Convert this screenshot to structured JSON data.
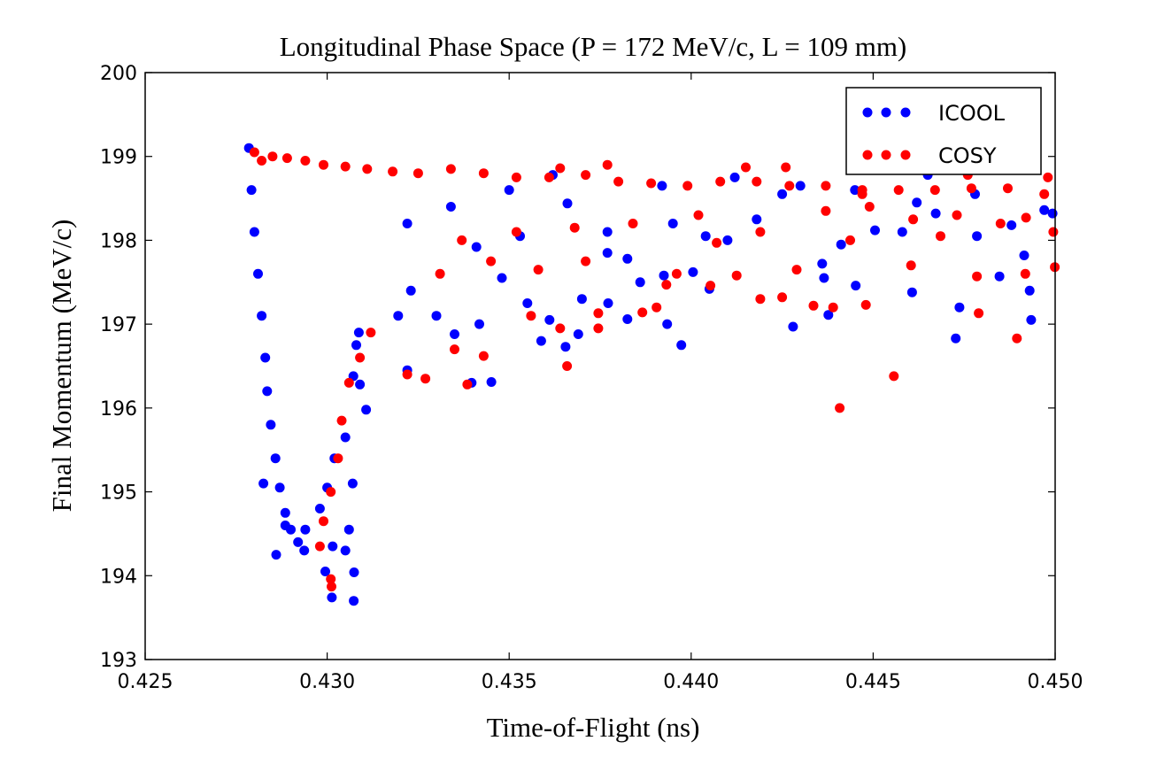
{
  "chart_data": {
    "type": "scatter",
    "title": "Longitudinal Phase Space (P = 172 MeV/c, L = 109 mm)",
    "xlabel": "Time-of-Flight (ns)",
    "ylabel": "Final Momentum (MeV/c)",
    "xlim": [
      0.425,
      0.45
    ],
    "ylim": [
      193,
      200
    ],
    "xticks": [
      "0.425",
      "0.430",
      "0.435",
      "0.440",
      "0.445",
      "0.450"
    ],
    "yticks": [
      "193",
      "194",
      "195",
      "196",
      "197",
      "198",
      "199",
      "200"
    ],
    "grid": false,
    "legend_position": "top-right",
    "series": [
      {
        "name": "ICOOL",
        "color": "#0000ff",
        "points": [
          [
            0.42785,
            199.1
          ],
          [
            0.42792,
            198.6
          ],
          [
            0.428,
            198.1
          ],
          [
            0.4281,
            197.6
          ],
          [
            0.4282,
            197.1
          ],
          [
            0.4283,
            196.6
          ],
          [
            0.42835,
            196.2
          ],
          [
            0.42845,
            195.8
          ],
          [
            0.42858,
            195.4
          ],
          [
            0.4287,
            195.05
          ],
          [
            0.42885,
            194.75
          ],
          [
            0.429,
            194.55
          ],
          [
            0.4292,
            194.4
          ],
          [
            0.42937,
            194.3
          ],
          [
            0.4286,
            194.25
          ],
          [
            0.4294,
            194.55
          ],
          [
            0.4298,
            194.8
          ],
          [
            0.43,
            195.05
          ],
          [
            0.4302,
            195.4
          ],
          [
            0.4305,
            195.65
          ],
          [
            0.4307,
            195.1
          ],
          [
            0.4306,
            194.55
          ],
          [
            0.4305,
            194.3
          ],
          [
            0.42885,
            194.6
          ],
          [
            0.42825,
            195.1
          ],
          [
            0.43015,
            194.35
          ],
          [
            0.42995,
            194.05
          ],
          [
            0.43013,
            193.74
          ],
          [
            0.43073,
            193.7
          ],
          [
            0.43074,
            194.04
          ],
          [
            0.43107,
            195.98
          ],
          [
            0.4309,
            196.28
          ],
          [
            0.43072,
            196.38
          ],
          [
            0.4308,
            196.75
          ],
          [
            0.43087,
            196.9
          ],
          [
            0.4322,
            196.45
          ],
          [
            0.43195,
            197.1
          ],
          [
            0.4323,
            197.4
          ],
          [
            0.433,
            197.1
          ],
          [
            0.4335,
            196.88
          ],
          [
            0.43397,
            196.3
          ],
          [
            0.43451,
            196.31
          ],
          [
            0.43418,
            197.0
          ],
          [
            0.4348,
            197.55
          ],
          [
            0.4355,
            197.25
          ],
          [
            0.43588,
            196.8
          ],
          [
            0.43655,
            196.73
          ],
          [
            0.43611,
            197.05
          ],
          [
            0.4369,
            196.88
          ],
          [
            0.437,
            197.3
          ],
          [
            0.43772,
            197.25
          ],
          [
            0.43825,
            197.06
          ],
          [
            0.43825,
            197.78
          ],
          [
            0.43925,
            197.58
          ],
          [
            0.43934,
            197.0
          ],
          [
            0.43973,
            196.75
          ],
          [
            0.44005,
            197.62
          ],
          [
            0.4405,
            197.42
          ],
          [
            0.441,
            198.0
          ],
          [
            0.4418,
            198.25
          ],
          [
            0.4428,
            196.97
          ],
          [
            0.44365,
            197.55
          ],
          [
            0.4436,
            197.72
          ],
          [
            0.44377,
            197.11
          ],
          [
            0.44412,
            197.95
          ],
          [
            0.44452,
            197.46
          ],
          [
            0.44505,
            198.12
          ],
          [
            0.4458,
            198.1
          ],
          [
            0.44607,
            197.38
          ],
          [
            0.44672,
            198.32
          ],
          [
            0.44727,
            196.83
          ],
          [
            0.44737,
            197.2
          ],
          [
            0.44785,
            198.05
          ],
          [
            0.44847,
            197.57
          ],
          [
            0.44915,
            197.82
          ],
          [
            0.44934,
            197.05
          ],
          [
            0.4493,
            197.4
          ],
          [
            0.4497,
            198.36
          ],
          [
            0.44993,
            198.32
          ],
          [
            0.4377,
            198.1
          ],
          [
            0.4366,
            198.44
          ],
          [
            0.4395,
            198.2
          ],
          [
            0.4425,
            198.55
          ],
          [
            0.4445,
            198.6
          ],
          [
            0.4462,
            198.45
          ],
          [
            0.4478,
            198.55
          ],
          [
            0.4488,
            198.18
          ],
          [
            0.435,
            198.6
          ],
          [
            0.4362,
            198.78
          ],
          [
            0.4392,
            198.65
          ],
          [
            0.4412,
            198.75
          ],
          [
            0.443,
            198.65
          ],
          [
            0.4465,
            198.78
          ],
          [
            0.4322,
            198.2
          ],
          [
            0.4334,
            198.4
          ],
          [
            0.4341,
            197.92
          ],
          [
            0.4353,
            198.05
          ],
          [
            0.4377,
            197.85
          ],
          [
            0.4386,
            197.5
          ],
          [
            0.4404,
            198.05
          ]
        ]
      },
      {
        "name": "COSY",
        "color": "#ff0000",
        "points": [
          [
            0.428,
            199.05
          ],
          [
            0.4282,
            198.95
          ],
          [
            0.4285,
            199.0
          ],
          [
            0.4289,
            198.98
          ],
          [
            0.4294,
            198.95
          ],
          [
            0.4299,
            198.9
          ],
          [
            0.4305,
            198.88
          ],
          [
            0.4311,
            198.85
          ],
          [
            0.4318,
            198.82
          ],
          [
            0.4325,
            198.8
          ],
          [
            0.4334,
            198.85
          ],
          [
            0.4343,
            198.8
          ],
          [
            0.4352,
            198.75
          ],
          [
            0.4361,
            198.75
          ],
          [
            0.4371,
            198.78
          ],
          [
            0.438,
            198.7
          ],
          [
            0.4389,
            198.68
          ],
          [
            0.4399,
            198.65
          ],
          [
            0.4408,
            198.7
          ],
          [
            0.4418,
            198.7
          ],
          [
            0.4427,
            198.65
          ],
          [
            0.4437,
            198.65
          ],
          [
            0.4447,
            198.6
          ],
          [
            0.4457,
            198.6
          ],
          [
            0.4467,
            198.6
          ],
          [
            0.4477,
            198.62
          ],
          [
            0.4487,
            198.62
          ],
          [
            0.4497,
            198.55
          ],
          [
            0.4426,
            198.87
          ],
          [
            0.4415,
            198.87
          ],
          [
            0.4377,
            198.9
          ],
          [
            0.4364,
            198.86
          ],
          [
            0.4498,
            198.75
          ],
          [
            0.4476,
            198.78
          ],
          [
            0.4447,
            198.55
          ],
          [
            0.4298,
            194.35
          ],
          [
            0.4299,
            194.65
          ],
          [
            0.4301,
            195.0
          ],
          [
            0.4303,
            195.4
          ],
          [
            0.4304,
            195.85
          ],
          [
            0.4306,
            196.3
          ],
          [
            0.4309,
            196.6
          ],
          [
            0.4312,
            196.9
          ],
          [
            0.4301,
            193.96
          ],
          [
            0.43012,
            193.87
          ],
          [
            0.4322,
            196.4
          ],
          [
            0.4327,
            196.35
          ],
          [
            0.4335,
            196.7
          ],
          [
            0.43385,
            196.28
          ],
          [
            0.4343,
            196.62
          ],
          [
            0.4356,
            197.1
          ],
          [
            0.43659,
            196.5
          ],
          [
            0.4364,
            196.95
          ],
          [
            0.43745,
            196.95
          ],
          [
            0.43745,
            197.13
          ],
          [
            0.43866,
            197.14
          ],
          [
            0.43905,
            197.2
          ],
          [
            0.43932,
            197.47
          ],
          [
            0.4396,
            197.6
          ],
          [
            0.44053,
            197.46
          ],
          [
            0.4407,
            197.97
          ],
          [
            0.44125,
            197.58
          ],
          [
            0.4419,
            197.3
          ],
          [
            0.4425,
            197.32
          ],
          [
            0.4429,
            197.65
          ],
          [
            0.44336,
            197.22
          ],
          [
            0.4439,
            197.2
          ],
          [
            0.44408,
            196.0
          ],
          [
            0.44437,
            198.0
          ],
          [
            0.4448,
            197.23
          ],
          [
            0.44557,
            196.38
          ],
          [
            0.44604,
            197.7
          ],
          [
            0.44685,
            198.05
          ],
          [
            0.44785,
            197.57
          ],
          [
            0.4479,
            197.13
          ],
          [
            0.44895,
            196.83
          ],
          [
            0.44918,
            197.6
          ],
          [
            0.44999,
            197.68
          ],
          [
            0.44995,
            198.1
          ],
          [
            0.4492,
            198.27
          ],
          [
            0.4485,
            198.2
          ],
          [
            0.4473,
            198.3
          ],
          [
            0.4461,
            198.25
          ],
          [
            0.4449,
            198.4
          ],
          [
            0.4437,
            198.35
          ],
          [
            0.4419,
            198.1
          ],
          [
            0.4402,
            198.3
          ],
          [
            0.4384,
            198.2
          ],
          [
            0.4368,
            198.15
          ],
          [
            0.4352,
            198.1
          ],
          [
            0.4337,
            198.0
          ],
          [
            0.4331,
            197.6
          ],
          [
            0.4345,
            197.75
          ],
          [
            0.4358,
            197.65
          ],
          [
            0.4371,
            197.75
          ]
        ]
      }
    ]
  }
}
